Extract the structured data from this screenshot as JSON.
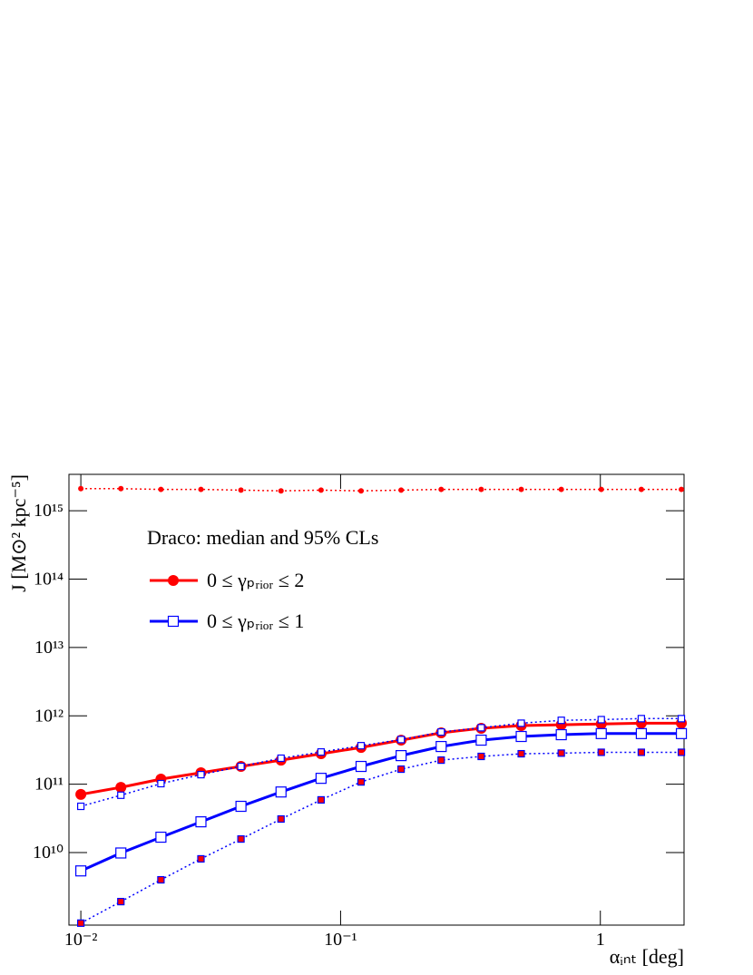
{
  "chart_data": {
    "type": "line",
    "xlabel": "αᵢₙₜ [deg]",
    "ylabel": "J  [M⊙² kpc⁻⁵]",
    "legend_title": "Draco: median and 95% CLs",
    "legend": "upper left",
    "xscale": "log",
    "yscale": "log",
    "xlim": [
      0.009,
      2.1
    ],
    "ylim": [
      870000000,
      3400000000000000
    ],
    "xticks": [
      {
        "value": 0.01,
        "label": "10⁻²"
      },
      {
        "value": 0.1,
        "label": "10⁻¹"
      },
      1
    ],
    "yticks": [
      {
        "value": 10000000000,
        "label": "10¹⁰"
      },
      {
        "value": 100000000000,
        "label": "10¹¹"
      },
      {
        "value": 1000000000000,
        "label": "10¹²"
      },
      {
        "value": 10000000000000,
        "label": "10¹³"
      },
      {
        "value": 100000000000000,
        "label": "10¹⁴"
      },
      {
        "value": 1000000000000000,
        "label": "10¹⁵"
      }
    ],
    "x": [
      0.01,
      0.01426,
      0.02034,
      0.029,
      0.04135,
      0.05897,
      0.0841,
      0.1199,
      0.171,
      0.2439,
      0.3478,
      0.4959,
      0.7072,
      1.008,
      1.438,
      2.051
    ],
    "series": [
      {
        "name": "0 ≤ γₚᵣᵢₒᵣ ≤ 2",
        "color": "#ff0000",
        "marker": "circle",
        "dash": "solid",
        "values": [
          71000000000,
          90000000000,
          119000000000,
          147000000000,
          182000000000,
          225000000000,
          279000000000,
          345000000000,
          441000000000,
          564000000000,
          657000000000,
          720000000000,
          740000000000,
          760000000000,
          780000000000,
          780000000000
        ]
      },
      {
        "name": "0 ≤ γₚᵣᵢₒᵣ ≤ 1",
        "color": "#0000ff",
        "marker": "square-open",
        "dash": "solid",
        "values": [
          5400000000,
          9870000000,
          16800000000,
          28200000000,
          47500000000,
          77000000000,
          122000000000,
          182000000000,
          262000000000,
          356000000000,
          441000000000,
          499000000000,
          530000000000,
          550000000000,
          550000000000,
          550000000000
        ]
      },
      {
        "color": "#ff0000",
        "marker": "dot",
        "dash": "dotted",
        "values": [
          2100000000000000,
          2100000000000000,
          2050000000000000,
          2050000000000000,
          2000000000000000,
          1950000000000000,
          2000000000000000,
          1950000000000000,
          2000000000000000,
          2050000000000000,
          2050000000000000,
          2050000000000000,
          2050000000000000,
          2050000000000000,
          2050000000000000,
          2050000000000000
        ]
      },
      {
        "color": "#0000ff",
        "marker": "square-open-small",
        "dash": "dotted",
        "values": [
          47500000000,
          69000000000,
          102000000000,
          138000000000,
          182000000000,
          240000000000,
          296000000000,
          366000000000,
          450000000000,
          580000000000,
          670000000000,
          780000000000,
          860000000000,
          880000000000,
          910000000000,
          910000000000
        ]
      },
      {
        "color": "#0000ff",
        "marker": "square-red",
        "dash": "dotted",
        "values": [
          930000000,
          1920000000,
          4000000000,
          8100000000,
          15800000000,
          31000000000,
          59000000000,
          108000000000,
          166000000000,
          225000000000,
          255000000000,
          279000000000,
          285000000000,
          293000000000,
          293000000000,
          293000000000
        ]
      }
    ]
  }
}
